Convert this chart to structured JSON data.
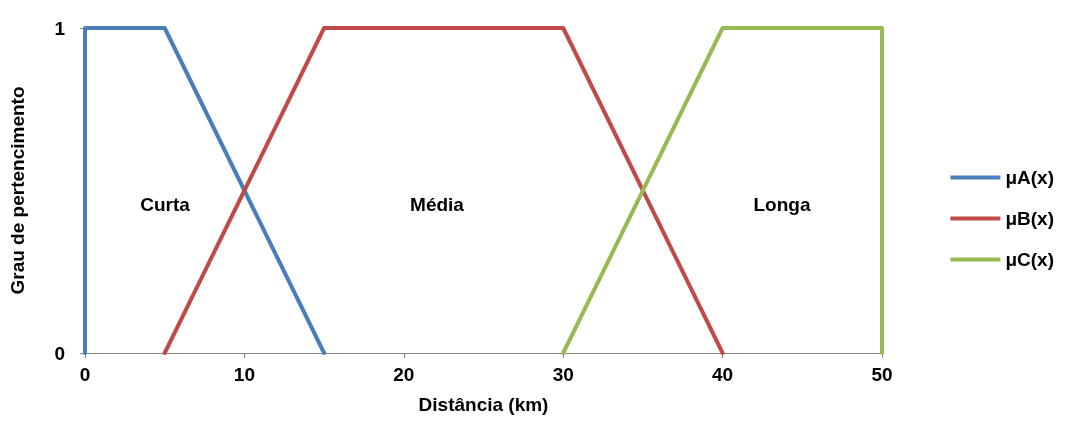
{
  "chart_data": {
    "type": "line",
    "xlabel": "Distância (km)",
    "ylabel": "Grau de pertencimento",
    "series": [
      {
        "name": "μA(x)",
        "color": "#4a7ebb",
        "x": [
          0,
          0,
          5,
          15
        ],
        "values": [
          0,
          1,
          1,
          0
        ]
      },
      {
        "name": "μB(x)",
        "color": "#be4b48",
        "x": [
          5,
          15,
          30,
          40
        ],
        "values": [
          0,
          1,
          1,
          0
        ]
      },
      {
        "name": "μC(x)",
        "color": "#98b954",
        "x": [
          30,
          40,
          50,
          50
        ],
        "values": [
          0,
          1,
          1,
          0
        ]
      }
    ],
    "xlim": [
      0,
      50
    ],
    "xticks": [
      0,
      10,
      20,
      30,
      40,
      50
    ],
    "ylim": [
      0,
      1
    ],
    "yticks": [
      0,
      1
    ],
    "annotations": [
      "Curta",
      "Média",
      "Longa"
    ],
    "grid": false,
    "legend": "right",
    "marker": "none",
    "line_style": "solid"
  }
}
